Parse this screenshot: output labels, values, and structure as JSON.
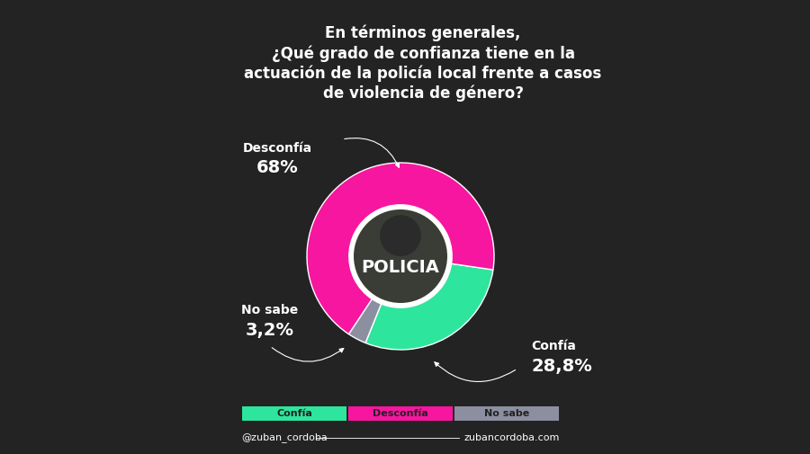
{
  "chart_data": {
    "type": "donut",
    "title": "En términos generales,\n¿Qué grado de confianza tiene en la\nactuación de la policía local frente a casos\nde violencia de género?",
    "categories": [
      "Confía",
      "Desconfía",
      "No sabe"
    ],
    "values": [
      28.8,
      68,
      3.2
    ],
    "value_labels": [
      "28,8%",
      "68%",
      "3,2%"
    ],
    "colors": [
      "#2ee59d",
      "#f7169f",
      "#8c8fa0"
    ],
    "data_labels": true,
    "legend": "lower center",
    "center_label": "POLICIA",
    "footer": [
      "@zuban_cordoba",
      "zubancordoba.com"
    ]
  }
}
